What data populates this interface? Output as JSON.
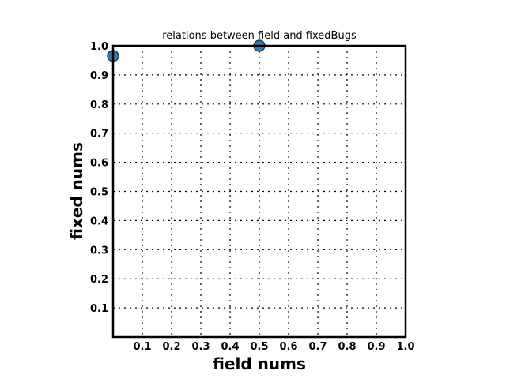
{
  "chart_data": {
    "type": "scatter",
    "title": "relations between field and fixedBugs",
    "xlabel": "field nums",
    "ylabel": "fixed nums",
    "xlim": [
      0,
      1.0
    ],
    "ylim": [
      0,
      1.0
    ],
    "xticks": [
      "0.1",
      "0.2",
      "0.3",
      "0.4",
      "0.5",
      "0.6",
      "0.7",
      "0.8",
      "0.9",
      "1.0"
    ],
    "yticks": [
      "0.1",
      "0.2",
      "0.3",
      "0.4",
      "0.5",
      "0.6",
      "0.7",
      "0.8",
      "0.9",
      "1.0"
    ],
    "grid": true,
    "marker_color": "#3b79aa",
    "points": [
      {
        "x": 0.0,
        "y": 0.965
      },
      {
        "x": 0.5,
        "y": 1.0
      }
    ]
  }
}
